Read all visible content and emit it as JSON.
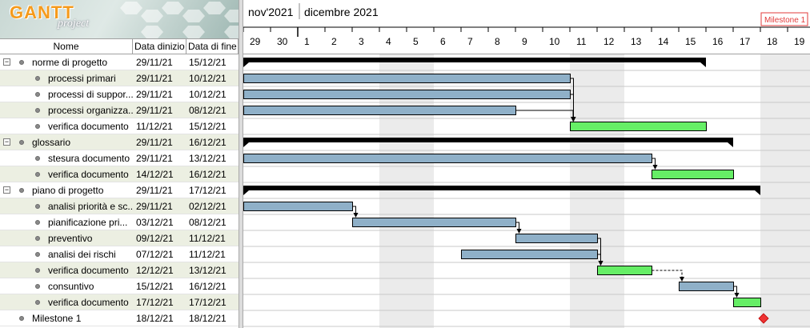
{
  "app": {
    "logo_text": "GANTT",
    "logo_sub": "project"
  },
  "columns": {
    "name": "Nome",
    "start": "Data dinizio",
    "end": "Data di fine"
  },
  "tasks": [
    {
      "name": "norme di progetto",
      "start": "29/11/21",
      "end": "15/12/21",
      "level": 0,
      "expanded": true,
      "summary": true
    },
    {
      "name": "processi primari",
      "start": "29/11/21",
      "end": "10/12/21",
      "level": 1
    },
    {
      "name": "processi di suppor...",
      "start": "29/11/21",
      "end": "10/12/21",
      "level": 1
    },
    {
      "name": "processi organizza...",
      "start": "29/11/21",
      "end": "08/12/21",
      "level": 1
    },
    {
      "name": "verifica documento",
      "start": "11/12/21",
      "end": "15/12/21",
      "level": 1
    },
    {
      "name": "glossario",
      "start": "29/11/21",
      "end": "16/12/21",
      "level": 0,
      "expanded": true,
      "summary": true
    },
    {
      "name": "stesura documento",
      "start": "29/11/21",
      "end": "13/12/21",
      "level": 1
    },
    {
      "name": "verifica documento",
      "start": "14/12/21",
      "end": "16/12/21",
      "level": 1
    },
    {
      "name": "piano di progetto",
      "start": "29/11/21",
      "end": "17/12/21",
      "level": 0,
      "expanded": true,
      "summary": true
    },
    {
      "name": "analisi priorità e sc...",
      "start": "29/11/21",
      "end": "02/12/21",
      "level": 1
    },
    {
      "name": "pianificazione pri...",
      "start": "03/12/21",
      "end": "08/12/21",
      "level": 1
    },
    {
      "name": "preventivo",
      "start": "09/12/21",
      "end": "11/12/21",
      "level": 1
    },
    {
      "name": "analisi dei rischi",
      "start": "07/12/21",
      "end": "11/12/21",
      "level": 1
    },
    {
      "name": "verifica documento",
      "start": "12/12/21",
      "end": "13/12/21",
      "level": 1
    },
    {
      "name": "consuntivo",
      "start": "15/12/21",
      "end": "16/12/21",
      "level": 1
    },
    {
      "name": "verifica documento",
      "start": "17/12/21",
      "end": "17/12/21",
      "level": 1
    },
    {
      "name": "Milestone 1",
      "start": "18/12/21",
      "end": "18/12/21",
      "level": 0,
      "milestone": true
    }
  ],
  "timeline": {
    "months": [
      "nov'2021",
      "dicembre 2021"
    ],
    "days": [
      "29",
      "30",
      "1",
      "2",
      "3",
      "4",
      "5",
      "6",
      "7",
      "8",
      "9",
      "10",
      "11",
      "12",
      "13",
      "14",
      "15",
      "16",
      "17",
      "18",
      "19"
    ],
    "milestone_label": "Milestone 1",
    "weekend_day_indices": [
      5,
      6,
      12,
      13,
      19,
      20
    ]
  },
  "bars": [
    {
      "row": 0,
      "kind": "summary",
      "start_day": 0,
      "end_day": 17
    },
    {
      "row": 1,
      "kind": "task",
      "start_day": 0,
      "end_day": 12,
      "color": "#8fb0c8"
    },
    {
      "row": 2,
      "kind": "task",
      "start_day": 0,
      "end_day": 12,
      "color": "#8fb0c8"
    },
    {
      "row": 3,
      "kind": "task",
      "start_day": 0,
      "end_day": 10,
      "color": "#8fb0c8"
    },
    {
      "row": 4,
      "kind": "task",
      "start_day": 12,
      "end_day": 17,
      "color": "#66ee66"
    },
    {
      "row": 5,
      "kind": "summary",
      "start_day": 0,
      "end_day": 18
    },
    {
      "row": 6,
      "kind": "task",
      "start_day": 0,
      "end_day": 15,
      "color": "#8fb0c8"
    },
    {
      "row": 7,
      "kind": "task",
      "start_day": 15,
      "end_day": 18,
      "color": "#66ee66"
    },
    {
      "row": 8,
      "kind": "summary",
      "start_day": 0,
      "end_day": 19
    },
    {
      "row": 9,
      "kind": "task",
      "start_day": 0,
      "end_day": 4,
      "color": "#8fb0c8"
    },
    {
      "row": 10,
      "kind": "task",
      "start_day": 4,
      "end_day": 10,
      "color": "#8fb0c8"
    },
    {
      "row": 11,
      "kind": "task",
      "start_day": 10,
      "end_day": 13,
      "color": "#8fb0c8"
    },
    {
      "row": 12,
      "kind": "task",
      "start_day": 8,
      "end_day": 13,
      "color": "#8fb0c8"
    },
    {
      "row": 13,
      "kind": "task",
      "start_day": 13,
      "end_day": 15,
      "color": "#66ee66"
    },
    {
      "row": 14,
      "kind": "task",
      "start_day": 16,
      "end_day": 18,
      "color": "#8fb0c8"
    },
    {
      "row": 15,
      "kind": "task",
      "start_day": 18,
      "end_day": 19,
      "color": "#66ee66"
    },
    {
      "row": 16,
      "kind": "milestone",
      "start_day": 19,
      "end_day": 19,
      "color": "#ee3333"
    }
  ],
  "dependencies": [
    {
      "from": 1,
      "to": 4,
      "style": "solid"
    },
    {
      "from": 2,
      "to": 4,
      "style": "solid"
    },
    {
      "from": 3,
      "to": 4,
      "style": "solid"
    },
    {
      "from": 6,
      "to": 7,
      "style": "solid"
    },
    {
      "from": 9,
      "to": 10,
      "style": "solid"
    },
    {
      "from": 10,
      "to": 11,
      "style": "solid"
    },
    {
      "from": 11,
      "to": 13,
      "style": "solid"
    },
    {
      "from": 12,
      "to": 13,
      "style": "solid"
    },
    {
      "from": 13,
      "to": 14,
      "style": "dashed"
    },
    {
      "from": 14,
      "to": 15,
      "style": "solid"
    }
  ]
}
